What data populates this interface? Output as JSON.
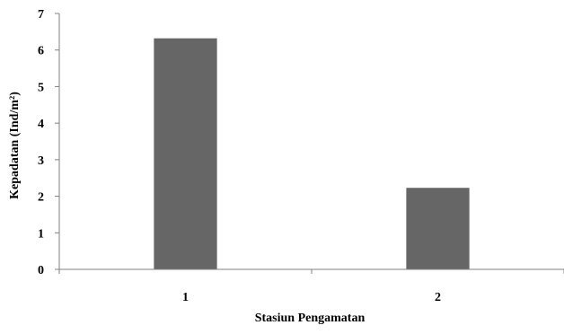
{
  "chart_data": {
    "type": "bar",
    "categories": [
      "1",
      "2"
    ],
    "values": [
      6.32,
      2.23
    ],
    "title": "",
    "xlabel": "Stasiun Pengamatan",
    "ylabel": "Kepadatan (Ind/m²)",
    "ylim": [
      0,
      7
    ],
    "yticks": [
      "0",
      "1",
      "2",
      "3",
      "4",
      "5",
      "6",
      "7"
    ],
    "grid": false,
    "legend": "none",
    "bar_color": "#666666",
    "axis_color": "#808080"
  }
}
